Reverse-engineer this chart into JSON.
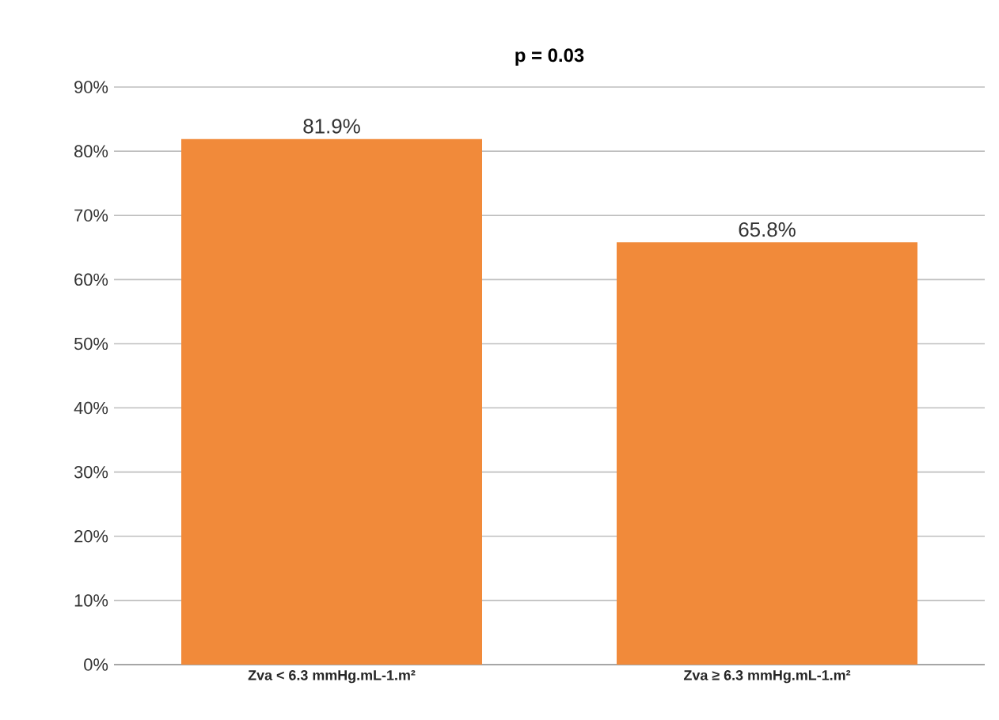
{
  "chart_data": {
    "type": "bar",
    "title": "p = 0.03",
    "categories": [
      "Zva < 6.3 mmHg.mL-1.m²",
      "Zva ≥ 6.3 mmHg.mL-1.m²"
    ],
    "values": [
      81.9,
      65.8
    ],
    "value_labels": [
      "81.9%",
      "65.8%"
    ],
    "color": "#f18a3a",
    "ylim": [
      0,
      90
    ],
    "yticks": [
      {
        "value": 0,
        "label": "0%"
      },
      {
        "value": 10,
        "label": "10%"
      },
      {
        "value": 20,
        "label": "20%"
      },
      {
        "value": 30,
        "label": "30%"
      },
      {
        "value": 40,
        "label": "40%"
      },
      {
        "value": 50,
        "label": "50%"
      },
      {
        "value": 60,
        "label": "60%"
      },
      {
        "value": 70,
        "label": "70%"
      },
      {
        "value": 80,
        "label": "80%"
      },
      {
        "value": 90,
        "label": "90%"
      }
    ],
    "grid": "y"
  }
}
